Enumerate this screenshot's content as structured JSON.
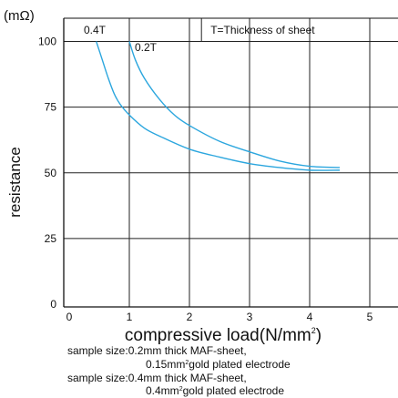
{
  "chart_data": {
    "type": "line",
    "title": "",
    "xlabel": "compressive load(N/mm",
    "xlabel_sup": "2",
    "xlabel_tail": ")",
    "ylabel": "resistance",
    "yunit": "(mΩ)",
    "xlim": [
      0,
      5.5
    ],
    "ylim": [
      0,
      105
    ],
    "xticks": [
      0,
      1,
      2,
      3,
      4,
      5
    ],
    "yticks": [
      0,
      25,
      50,
      75,
      100
    ],
    "grid": true,
    "line_color": "#2ba6de",
    "annotation": "T=Thickness of sheet",
    "series": [
      {
        "name": "0.4T",
        "x": [
          0.45,
          0.55,
          0.65,
          0.75,
          0.85,
          1.0,
          1.25,
          1.5,
          2.0,
          2.5,
          3.0,
          3.5,
          4.0,
          4.5
        ],
        "y": [
          100,
          93,
          86,
          80,
          76,
          72,
          67,
          64,
          59,
          56,
          53.5,
          52,
          51,
          51
        ]
      },
      {
        "name": "0.2T",
        "x": [
          1.0,
          1.1,
          1.25,
          1.5,
          1.75,
          2.0,
          2.5,
          3.0,
          3.5,
          4.0,
          4.5
        ],
        "y": [
          100,
          93,
          86,
          78,
          72,
          68,
          62,
          58,
          54.5,
          52.5,
          52
        ]
      }
    ]
  },
  "notes": [
    {
      "text": "sample size:0.2mm thick MAF-sheet,"
    },
    {
      "pre": "0.15mm",
      "sup": "2",
      "post": "gold plated electrode"
    },
    {
      "text": "sample size:0.4mm thick MAF-sheet,"
    },
    {
      "pre": "0.4mm",
      "sup": "2",
      "post": "gold plated electrode"
    }
  ]
}
